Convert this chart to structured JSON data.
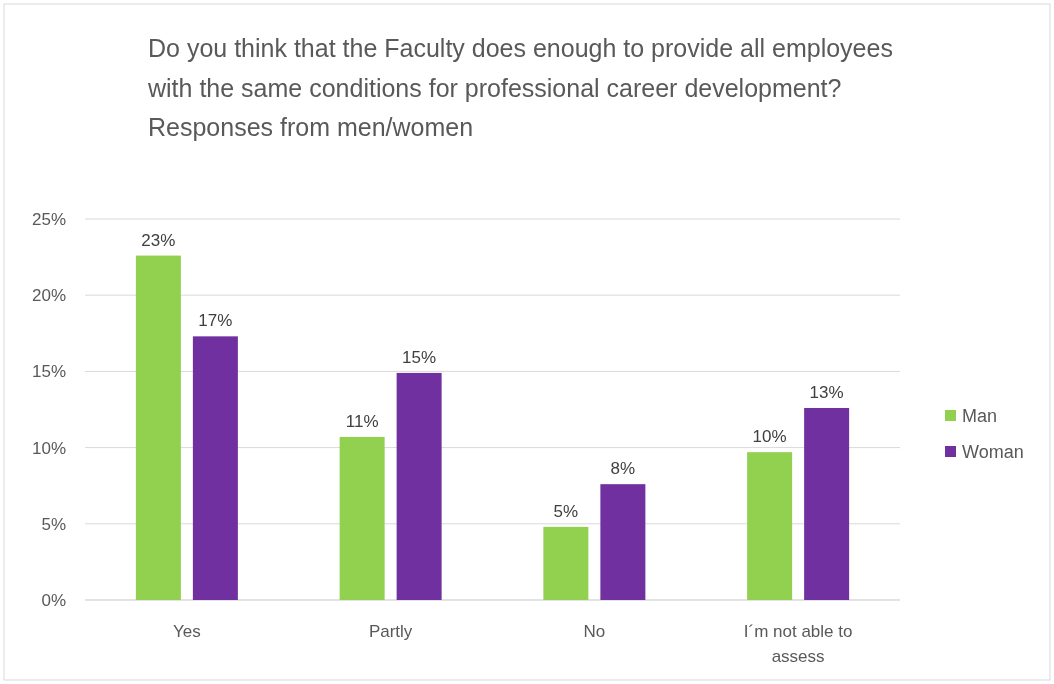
{
  "chart_data": {
    "type": "bar",
    "title": "Do you think that the Faculty does enough to provide all employees with the same conditions for professional career development?",
    "subtitle": "Responses from men/women",
    "categories": [
      "Yes",
      "Partly",
      "No",
      "I´m not able to assess"
    ],
    "series": [
      {
        "name": "Man",
        "color": "#92d050",
        "values": [
          22.6,
          10.7,
          4.8,
          9.7
        ],
        "value_labels": [
          "23%",
          "11%",
          "5%",
          "10%"
        ]
      },
      {
        "name": "Woman",
        "color": "#7030a0",
        "values": [
          17.3,
          14.9,
          7.6,
          12.6
        ],
        "value_labels": [
          "17%",
          "15%",
          "8%",
          "13%"
        ]
      }
    ],
    "ylim": [
      0,
      25
    ],
    "yticks": [
      {
        "value": 0,
        "label": "0%"
      },
      {
        "value": 5,
        "label": "5%"
      },
      {
        "value": 10,
        "label": "10%"
      },
      {
        "value": 15,
        "label": "15%"
      },
      {
        "value": 20,
        "label": "20%"
      },
      {
        "value": 25,
        "label": "25%"
      }
    ],
    "grid": "y",
    "legend": "right"
  }
}
